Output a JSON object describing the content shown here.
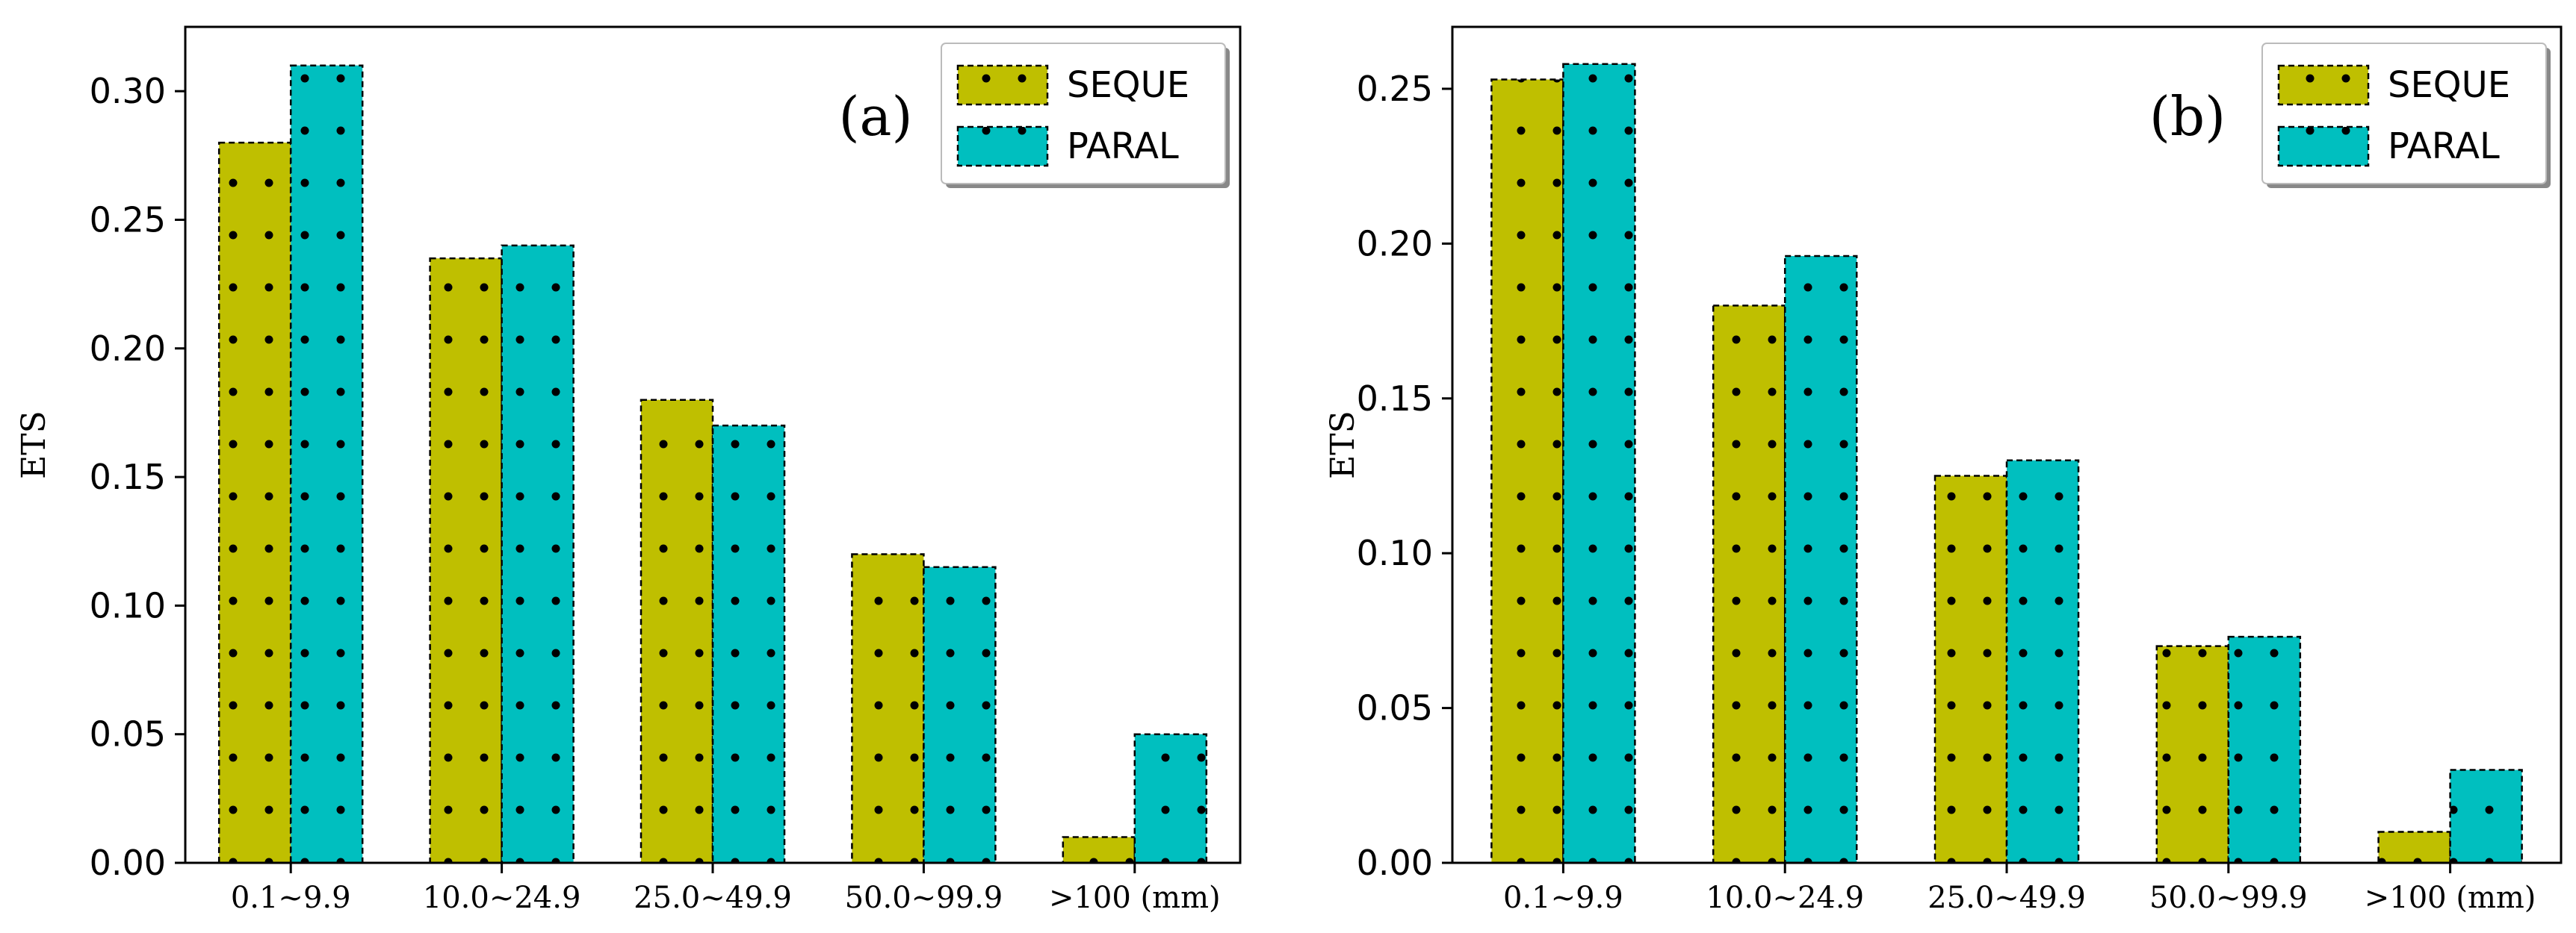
{
  "colors": {
    "seque": "#bfbf00",
    "paral": "#00bfbf",
    "dots": "#000000",
    "axis": "#000000"
  },
  "chart_data": [
    {
      "type": "bar",
      "panel_label": "(a)",
      "ylabel": "ETS",
      "xlabel": "",
      "categories": [
        "0.1~9.9",
        "10.0~24.9",
        "25.0~49.9",
        "50.0~99.9",
        ">100 (mm)"
      ],
      "ylim": [
        0,
        0.325
      ],
      "yticks": [
        0.0,
        0.05,
        0.1,
        0.15,
        0.2,
        0.25,
        0.3
      ],
      "ytick_labels": [
        "0.00",
        "0.05",
        "0.10",
        "0.15",
        "0.20",
        "0.25",
        "0.30"
      ],
      "legend_position": "top-right",
      "series": [
        {
          "name": "SEQUE",
          "values": [
            0.28,
            0.235,
            0.18,
            0.12,
            0.01
          ]
        },
        {
          "name": "PARAL",
          "values": [
            0.31,
            0.24,
            0.17,
            0.115,
            0.05
          ]
        }
      ]
    },
    {
      "type": "bar",
      "panel_label": "(b)",
      "ylabel": "ETS",
      "xlabel": "",
      "categories": [
        "0.1~9.9",
        "10.0~24.9",
        "25.0~49.9",
        "50.0~99.9",
        ">100 (mm)"
      ],
      "ylim": [
        0,
        0.27
      ],
      "yticks": [
        0.0,
        0.05,
        0.1,
        0.15,
        0.2,
        0.25
      ],
      "ytick_labels": [
        "0.00",
        "0.05",
        "0.10",
        "0.15",
        "0.20",
        "0.25"
      ],
      "legend_position": "top-right",
      "series": [
        {
          "name": "SEQUE",
          "values": [
            0.253,
            0.18,
            0.125,
            0.07,
            0.01
          ]
        },
        {
          "name": "PARAL",
          "values": [
            0.258,
            0.196,
            0.13,
            0.073,
            0.03
          ]
        }
      ]
    }
  ]
}
